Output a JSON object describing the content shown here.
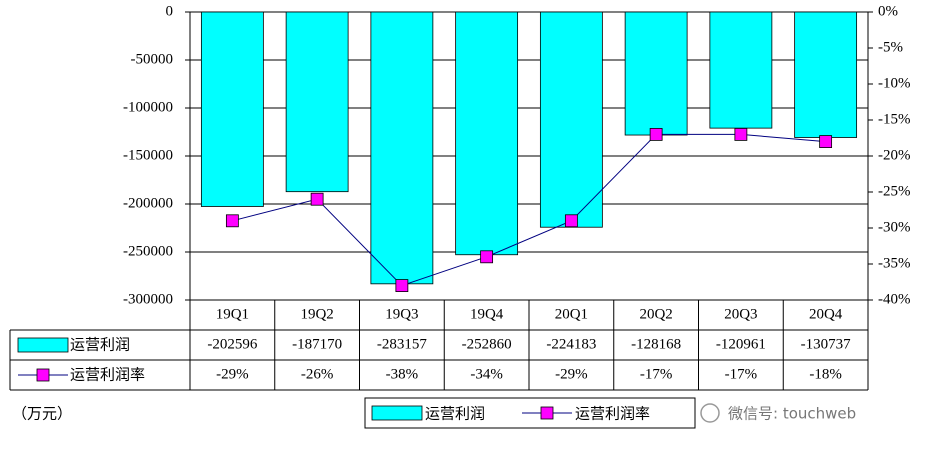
{
  "chart_data": {
    "type": "bar-line-table",
    "categories": [
      "19Q1",
      "19Q2",
      "19Q3",
      "19Q4",
      "20Q1",
      "20Q2",
      "20Q3",
      "20Q4"
    ],
    "series": [
      {
        "name": "运营利润",
        "type": "bar",
        "color": "#00ffff",
        "values": [
          -202596,
          -187170,
          -283157,
          -252860,
          -224183,
          -128168,
          -120961,
          -130737
        ]
      },
      {
        "name": "运营利润率",
        "type": "line",
        "axis": "y2",
        "color": "#ff00ff",
        "line_color": "#000080",
        "values": [
          -29,
          -26,
          -38,
          -34,
          -29,
          -17,
          -17,
          -18
        ],
        "value_labels": [
          "-29%",
          "-26%",
          "-38%",
          "-34%",
          "-29%",
          "-17%",
          "-17%",
          "-18%"
        ]
      }
    ],
    "ylim": [
      -300000,
      0
    ],
    "yticks": [
      0,
      -50000,
      -100000,
      -150000,
      -200000,
      -250000,
      -300000
    ],
    "y2lim": [
      -40,
      0
    ],
    "y2ticks": [
      {
        "value": 0,
        "label": "0%"
      },
      {
        "value": -5,
        "label": "-5%"
      },
      {
        "value": -10,
        "label": "-10%"
      },
      {
        "value": -15,
        "label": "-15%"
      },
      {
        "value": -20,
        "label": "-20%"
      },
      {
        "value": -25,
        "label": "-25%"
      },
      {
        "value": -30,
        "label": "-30%"
      },
      {
        "value": -35,
        "label": "-35%"
      },
      {
        "value": -40,
        "label": "-40%"
      }
    ],
    "grid": true,
    "legend": "bottom-right",
    "unit_note": "（万元）",
    "watermark": "微信号: touchweb"
  }
}
